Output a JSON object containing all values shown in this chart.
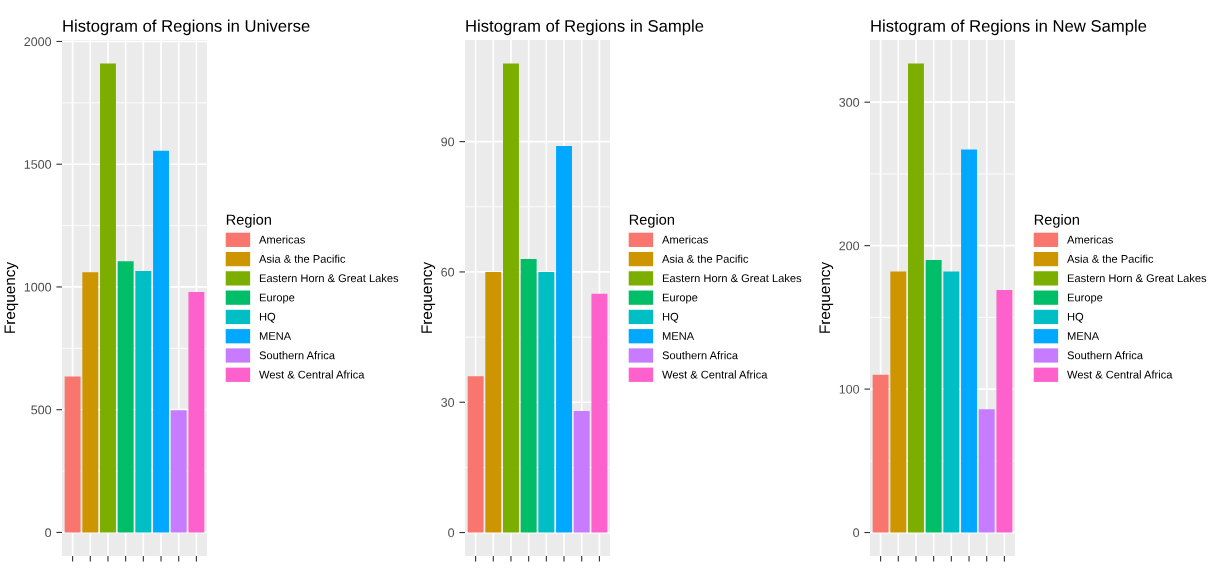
{
  "chart_data": [
    {
      "type": "bar",
      "title": "Histogram of Regions in Universe",
      "ylabel": "Frequency",
      "legend_title": "Region",
      "legend": "right",
      "grid": true,
      "tick_labels": "y",
      "categories": [
        null,
        null,
        null,
        null,
        null,
        null,
        null,
        null
      ],
      "ylim": [
        -96,
        2006
      ],
      "yticks": [
        0,
        500,
        1000,
        1500,
        2000
      ],
      "series": [
        {
          "name": "Americas",
          "color": "#f8766d",
          "values": [
            635,
            null,
            null,
            null,
            null,
            null,
            null,
            null
          ]
        },
        {
          "name": "Asia & the Pacific",
          "color": "#cd9600",
          "values": [
            null,
            1060,
            null,
            null,
            null,
            null,
            null,
            null
          ]
        },
        {
          "name": "Eastern Horn & Great Lakes",
          "color": "#7cae00",
          "values": [
            null,
            null,
            1910,
            null,
            null,
            null,
            null,
            null
          ]
        },
        {
          "name": "Europe",
          "color": "#00be67",
          "values": [
            null,
            null,
            null,
            1105,
            null,
            null,
            null,
            null
          ]
        },
        {
          "name": "HQ",
          "color": "#00bfc4",
          "values": [
            null,
            null,
            null,
            null,
            1065,
            null,
            null,
            null
          ]
        },
        {
          "name": "MENA",
          "color": "#00a9ff",
          "values": [
            null,
            null,
            null,
            null,
            null,
            1555,
            null,
            null
          ]
        },
        {
          "name": "Southern Africa",
          "color": "#c77cff",
          "values": [
            null,
            null,
            null,
            null,
            null,
            null,
            498,
            null
          ]
        },
        {
          "name": "West & Central Africa",
          "color": "#ff61cc",
          "values": [
            null,
            null,
            null,
            null,
            null,
            null,
            null,
            979
          ]
        }
      ]
    },
    {
      "type": "bar",
      "title": "Histogram of Regions in Sample",
      "ylabel": "Frequency",
      "legend_title": "Region",
      "legend": "right",
      "grid": true,
      "tick_labels": "y",
      "categories": [
        null,
        null,
        null,
        null,
        null,
        null,
        null,
        null
      ],
      "ylim": [
        -5.4,
        113.4
      ],
      "yticks": [
        0,
        30,
        60,
        90
      ],
      "series": [
        {
          "name": "Americas",
          "color": "#f8766d",
          "values": [
            36,
            null,
            null,
            null,
            null,
            null,
            null,
            null
          ]
        },
        {
          "name": "Asia & the Pacific",
          "color": "#cd9600",
          "values": [
            null,
            60,
            null,
            null,
            null,
            null,
            null,
            null
          ]
        },
        {
          "name": "Eastern Horn & Great Lakes",
          "color": "#7cae00",
          "values": [
            null,
            null,
            108,
            null,
            null,
            null,
            null,
            null
          ]
        },
        {
          "name": "Europe",
          "color": "#00be67",
          "values": [
            null,
            null,
            null,
            63,
            null,
            null,
            null,
            null
          ]
        },
        {
          "name": "HQ",
          "color": "#00bfc4",
          "values": [
            null,
            null,
            null,
            null,
            60,
            null,
            null,
            null
          ]
        },
        {
          "name": "MENA",
          "color": "#00a9ff",
          "values": [
            null,
            null,
            null,
            null,
            null,
            89,
            null,
            null
          ]
        },
        {
          "name": "Southern Africa",
          "color": "#c77cff",
          "values": [
            null,
            null,
            null,
            null,
            null,
            null,
            28,
            null
          ]
        },
        {
          "name": "West & Central Africa",
          "color": "#ff61cc",
          "values": [
            null,
            null,
            null,
            null,
            null,
            null,
            null,
            55
          ]
        }
      ]
    },
    {
      "type": "bar",
      "title": "Histogram of Regions in New Sample",
      "ylabel": "Frequency",
      "legend_title": "Region",
      "legend": "right",
      "grid": true,
      "tick_labels": "y",
      "categories": [
        null,
        null,
        null,
        null,
        null,
        null,
        null,
        null
      ],
      "ylim": [
        -16.35,
        343.35
      ],
      "yticks": [
        0,
        100,
        200,
        300
      ],
      "series": [
        {
          "name": "Americas",
          "color": "#f8766d",
          "values": [
            110,
            null,
            null,
            null,
            null,
            null,
            null,
            null
          ]
        },
        {
          "name": "Asia & the Pacific",
          "color": "#cd9600",
          "values": [
            null,
            182,
            null,
            null,
            null,
            null,
            null,
            null
          ]
        },
        {
          "name": "Eastern Horn & Great Lakes",
          "color": "#7cae00",
          "values": [
            null,
            null,
            327,
            null,
            null,
            null,
            null,
            null
          ]
        },
        {
          "name": "Europe",
          "color": "#00be67",
          "values": [
            null,
            null,
            null,
            190,
            null,
            null,
            null,
            null
          ]
        },
        {
          "name": "HQ",
          "color": "#00bfc4",
          "values": [
            null,
            null,
            null,
            null,
            182,
            null,
            null,
            null
          ]
        },
        {
          "name": "MENA",
          "color": "#00a9ff",
          "values": [
            null,
            null,
            null,
            null,
            null,
            267,
            null,
            null
          ]
        },
        {
          "name": "Southern Africa",
          "color": "#c77cff",
          "values": [
            null,
            null,
            null,
            null,
            null,
            null,
            86,
            null
          ]
        },
        {
          "name": "West & Central Africa",
          "color": "#ff61cc",
          "values": [
            null,
            null,
            null,
            null,
            null,
            null,
            null,
            169
          ]
        }
      ]
    }
  ]
}
